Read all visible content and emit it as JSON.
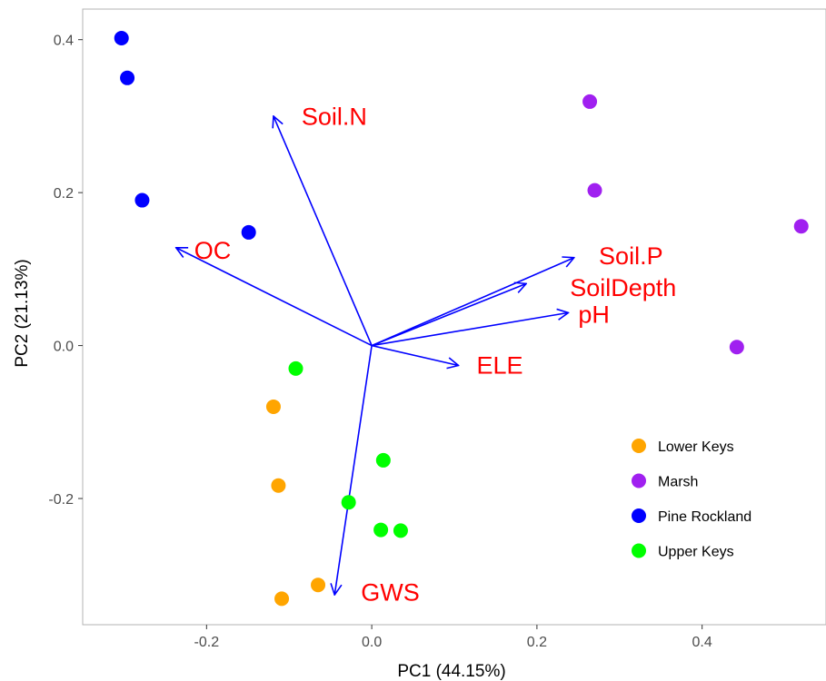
{
  "chart_data": {
    "type": "scatter",
    "subtype": "pca-biplot",
    "title": "",
    "xlabel": "PC1 (44.15%)",
    "ylabel": "PC2 (21.13%)",
    "xlim": [
      -0.35,
      0.55
    ],
    "ylim": [
      -0.365,
      0.44
    ],
    "xticks": [
      -0.2,
      0.0,
      0.2,
      0.4
    ],
    "xtick_labels": [
      "-0.2",
      "0.0",
      "0.2",
      "0.4"
    ],
    "yticks": [
      -0.2,
      0.0,
      0.2,
      0.4
    ],
    "ytick_labels": [
      "-0.2",
      "0.0",
      "0.2",
      "0.4"
    ],
    "grid": false,
    "legend_position": "right",
    "series": [
      {
        "name": "Lower Keys",
        "color": "#ffa500",
        "points": [
          {
            "x": -0.119,
            "y": -0.08
          },
          {
            "x": -0.113,
            "y": -0.183
          },
          {
            "x": -0.065,
            "y": -0.313
          },
          {
            "x": -0.109,
            "y": -0.331
          }
        ]
      },
      {
        "name": "Marsh",
        "color": "#a020f0",
        "points": [
          {
            "x": 0.264,
            "y": 0.319
          },
          {
            "x": 0.27,
            "y": 0.203
          },
          {
            "x": 0.52,
            "y": 0.156
          },
          {
            "x": 0.442,
            "y": -0.002
          }
        ]
      },
      {
        "name": "Pine Rockland",
        "color": "#0000ff",
        "points": [
          {
            "x": -0.303,
            "y": 0.402
          },
          {
            "x": -0.296,
            "y": 0.35
          },
          {
            "x": -0.278,
            "y": 0.19
          },
          {
            "x": -0.149,
            "y": 0.148
          }
        ]
      },
      {
        "name": "Upper Keys",
        "color": "#00ff00",
        "points": [
          {
            "x": -0.092,
            "y": -0.03
          },
          {
            "x": 0.014,
            "y": -0.15
          },
          {
            "x": -0.028,
            "y": -0.205
          },
          {
            "x": 0.011,
            "y": -0.241
          },
          {
            "x": 0.035,
            "y": -0.242
          }
        ]
      }
    ],
    "vectors": {
      "color": "#0000ff",
      "label_color": "#ff0000",
      "items": [
        {
          "label": "Soil.N",
          "x": -0.119,
          "y": 0.3,
          "label_x": -0.085,
          "label_y": 0.297
        },
        {
          "label": "OC",
          "x": -0.237,
          "y": 0.128,
          "label_x": -0.215,
          "label_y": 0.122
        },
        {
          "label": "Soil.P",
          "x": 0.245,
          "y": 0.115,
          "label_x": 0.275,
          "label_y": 0.115
        },
        {
          "label": "SoilDepth",
          "x": 0.187,
          "y": 0.081,
          "label_x": 0.24,
          "label_y": 0.073
        },
        {
          "label": "pH",
          "x": 0.238,
          "y": 0.043,
          "label_x": 0.25,
          "label_y": 0.038
        },
        {
          "label": "ELE",
          "x": 0.105,
          "y": -0.026,
          "label_x": 0.127,
          "label_y": -0.028
        },
        {
          "label": "GWS",
          "x": -0.045,
          "y": -0.326,
          "label_x": -0.013,
          "label_y": -0.325
        }
      ]
    }
  }
}
